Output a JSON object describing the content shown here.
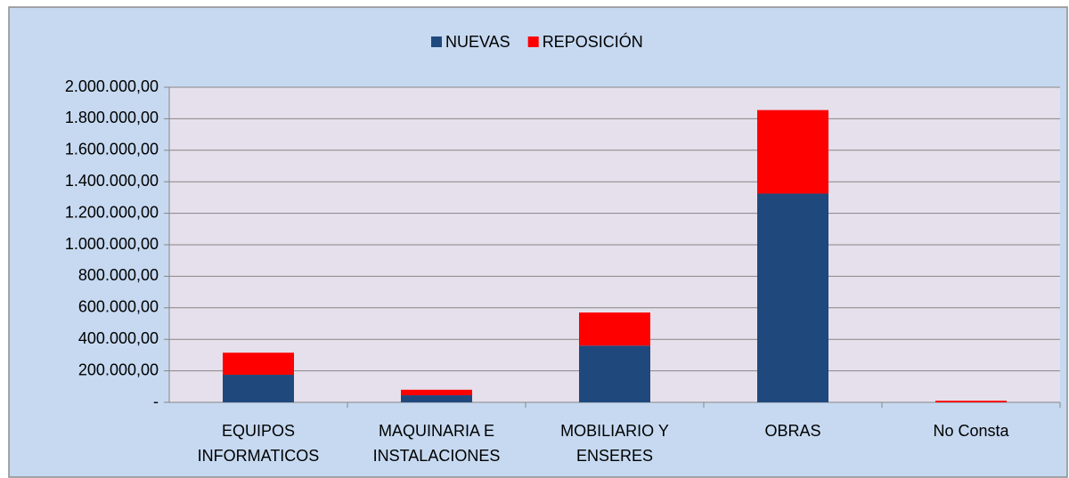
{
  "chart_data": {
    "type": "stacked_bar",
    "categories": [
      "EQUIPOS\nINFORMATICOS",
      "MAQUINARIA E\nINSTALACIONES",
      "MOBILIARIO Y\nENSERES",
      "OBRAS",
      "No Consta"
    ],
    "series": [
      {
        "name": "NUEVAS",
        "color": "#1f497d",
        "values": [
          175000,
          45000,
          360000,
          1325000,
          0
        ]
      },
      {
        "name": "REPOSICIÓN",
        "color": "#ff0000",
        "values": [
          140000,
          35000,
          210000,
          530000,
          10000
        ]
      }
    ],
    "ylim": [
      0,
      2000000
    ],
    "yticks": [
      {
        "value": 0,
        "label": "-"
      },
      {
        "value": 200000,
        "label": "200.000,00"
      },
      {
        "value": 400000,
        "label": "400.000,00"
      },
      {
        "value": 600000,
        "label": "600.000,00"
      },
      {
        "value": 800000,
        "label": "800.000,00"
      },
      {
        "value": 1000000,
        "label": "1.000.000,00"
      },
      {
        "value": 1200000,
        "label": "1.200.000,00"
      },
      {
        "value": 1400000,
        "label": "1.400.000,00"
      },
      {
        "value": 1600000,
        "label": "1.600.000,00"
      },
      {
        "value": 1800000,
        "label": "1.800.000,00"
      },
      {
        "value": 2000000,
        "label": "2.000.000,00"
      }
    ],
    "grid": true,
    "legend": "top"
  }
}
